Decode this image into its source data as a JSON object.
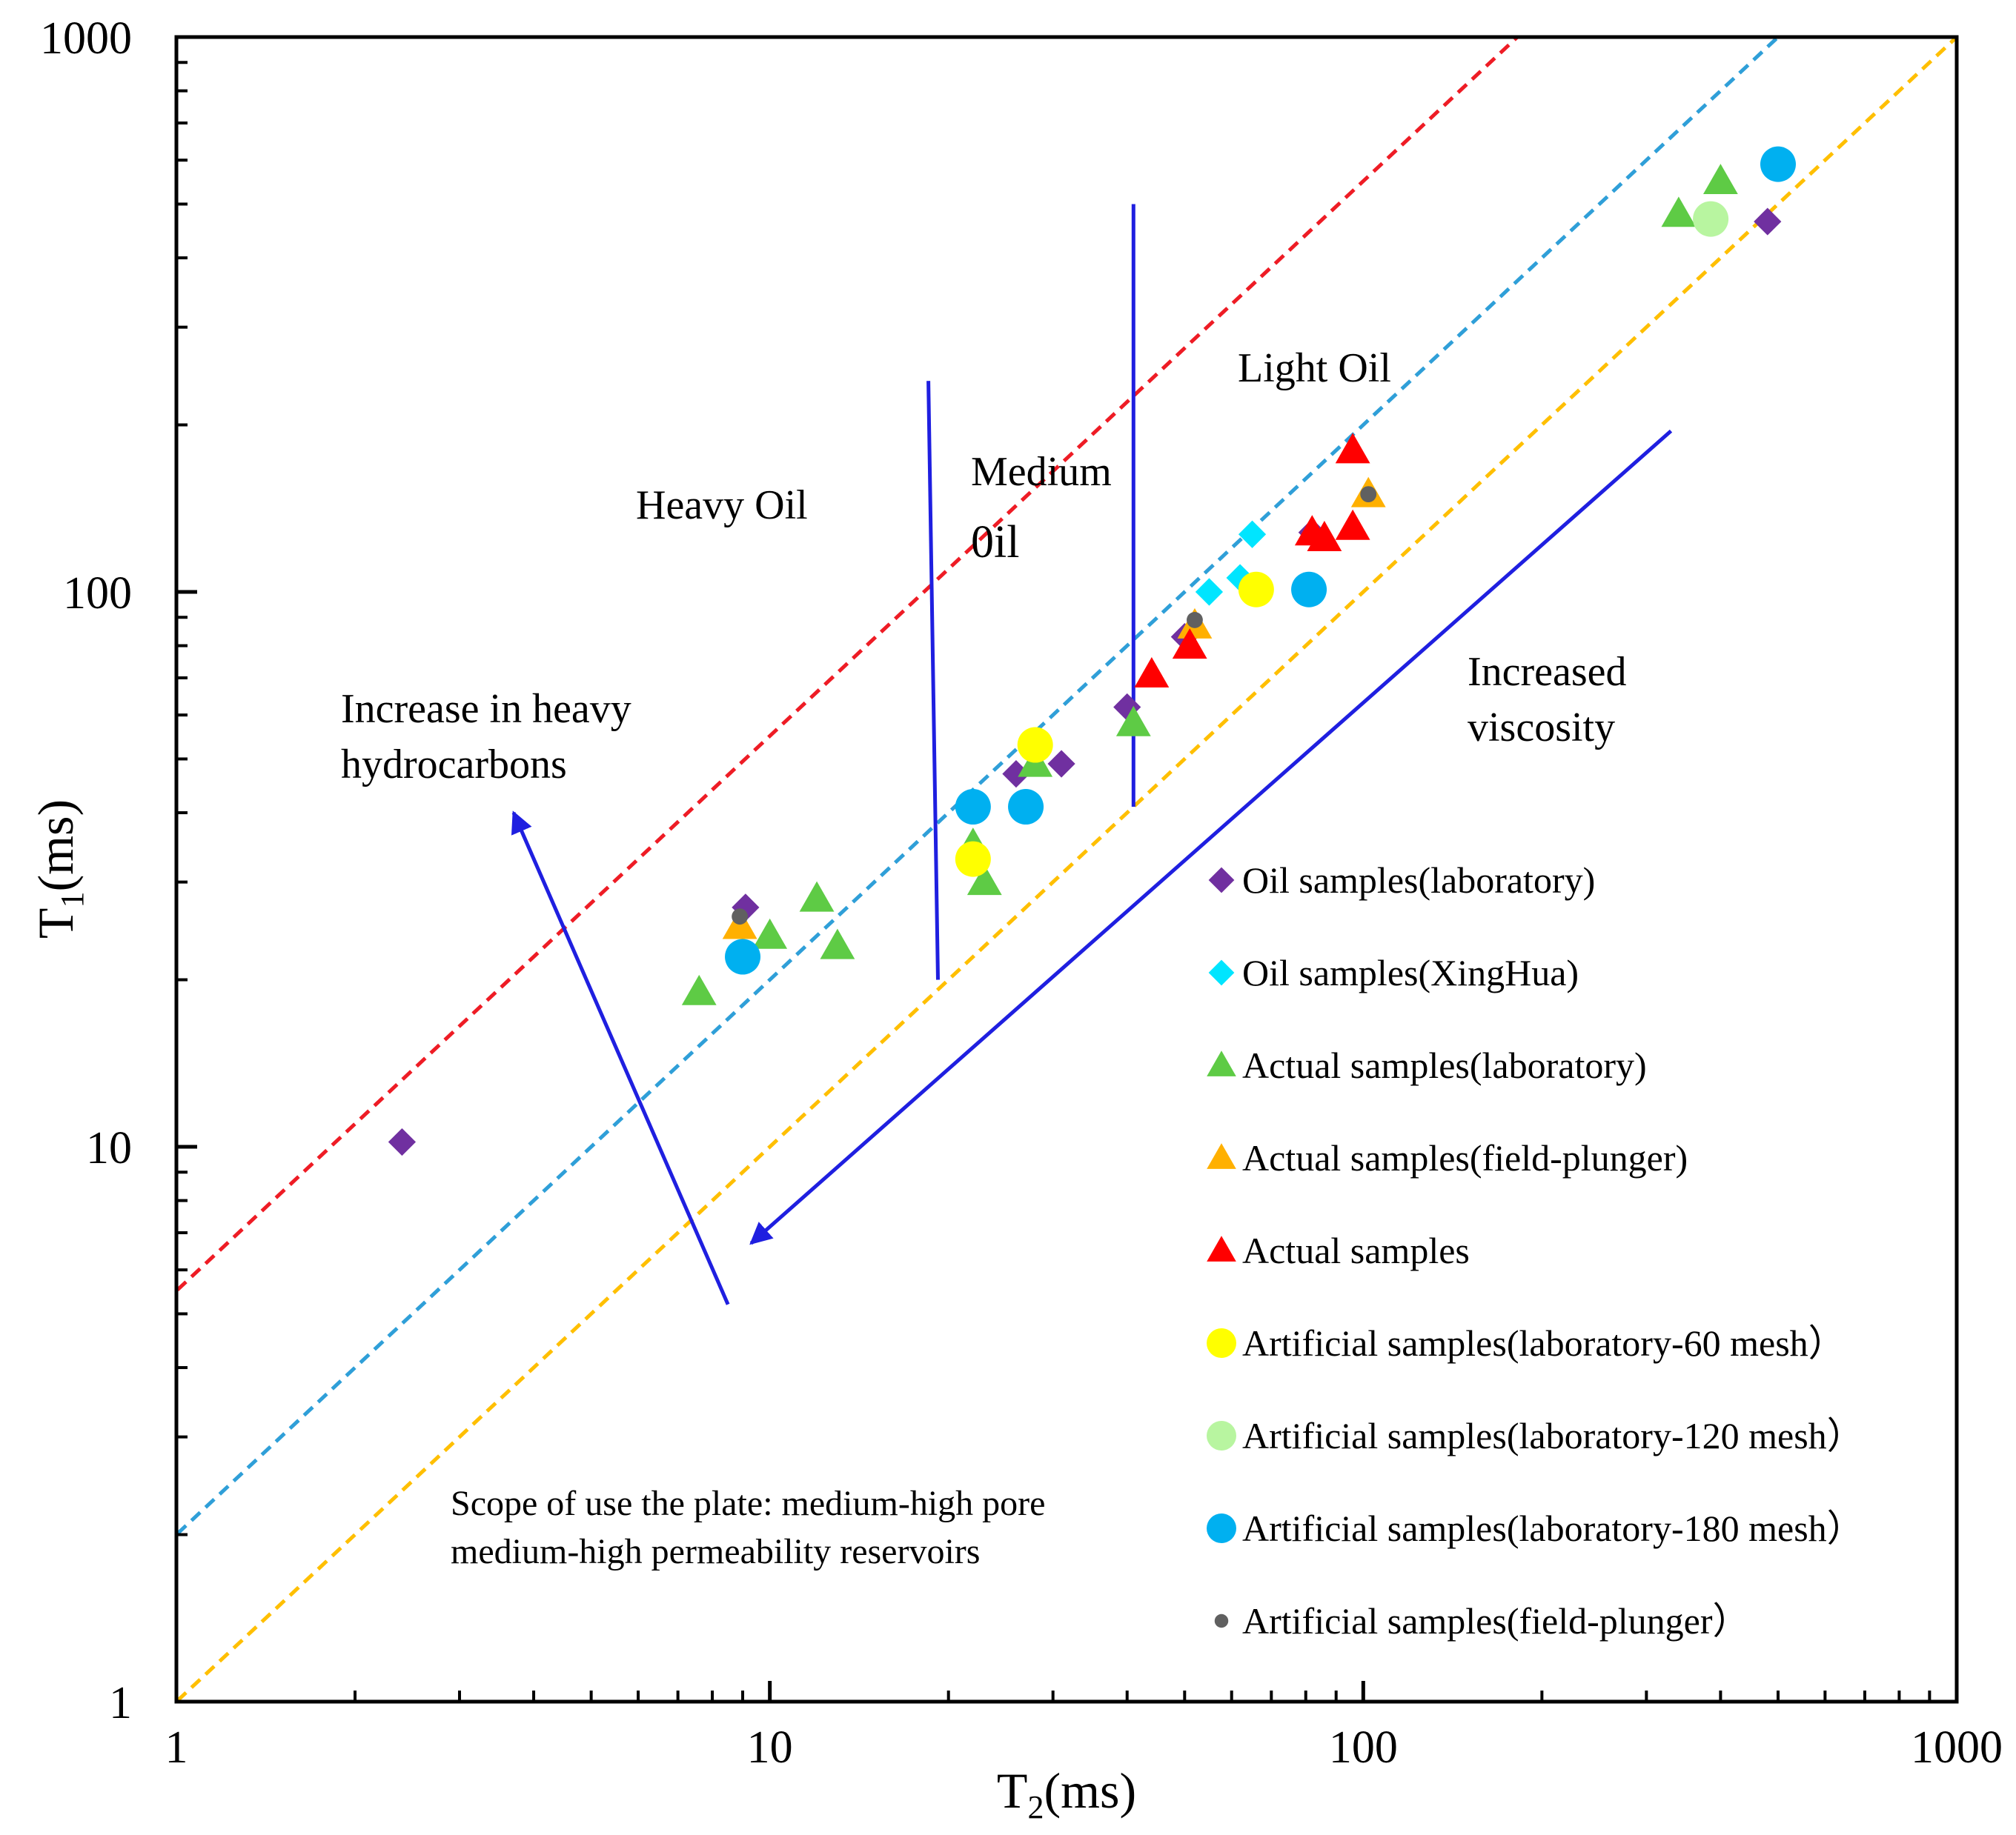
{
  "chart_data": {
    "type": "scatter",
    "x_scale": "log",
    "y_scale": "log",
    "xlim": [
      1,
      1000
    ],
    "ylim": [
      1,
      1000
    ],
    "xlabel": "T2(ms)",
    "ylabel": "T1(ms)",
    "xlabel_main": "T",
    "xlabel_sub": "2",
    "xlabel_unit": "(ms)",
    "ylabel_main": "T",
    "ylabel_sub": "1",
    "ylabel_unit": "(ms)",
    "x_ticks": [
      1,
      10,
      100,
      1000
    ],
    "x_tick_labels": [
      "1",
      "10",
      "100",
      "1000"
    ],
    "y_ticks": [
      1,
      10,
      100,
      1000
    ],
    "y_tick_labels": [
      "1",
      "10",
      "100",
      "1000"
    ],
    "reference_lines": [
      {
        "name": "T1/T2 = 5.5",
        "ratio": 5.5,
        "color": "#ee1c25"
      },
      {
        "name": "T1/T2 = 2",
        "ratio": 2,
        "color": "#2f9fd8"
      },
      {
        "name": "T1/T2 = 1",
        "ratio": 1,
        "color": "#ffbf00"
      }
    ],
    "region_boundaries": [
      {
        "name": "heavy-medium boundary",
        "x_start": 18.5,
        "y_start": 240,
        "x_end": 19.2,
        "y_end": 20,
        "color": "#1f1fe0"
      },
      {
        "name": "medium-light boundary",
        "x_start": 41,
        "y_start": 500,
        "x_end": 41,
        "y_end": 41,
        "color": "#1f1fe0"
      }
    ],
    "arrows": [
      {
        "name": "heavy hydrocarbons arrow",
        "from": [
          8.5,
          5.2
        ],
        "to": [
          3.7,
          40
        ],
        "color": "#1f1fe0"
      },
      {
        "name": "viscosity arrow",
        "from": [
          330,
          195
        ],
        "to": [
          9.3,
          6.7
        ],
        "color": "#1f1fe0"
      }
    ],
    "annotations": {
      "heavy_oil": "Heavy Oil",
      "medium_oil_line1": "Medium",
      "medium_oil_line2": "0il",
      "light_oil": "Light Oil",
      "heavy_hydrocarbons_line1": "Increase in heavy",
      "heavy_hydrocarbons_line2": "hydrocarbons",
      "viscosity_line1": "Increased",
      "viscosity_line2": "viscosity",
      "scope_line1": "Scope of use the plate: medium-high pore",
      "scope_line2": "medium-high permeability reservoirs"
    },
    "legend_position": "bottom-right",
    "series": [
      {
        "name": "Oil samples(laboratory)",
        "marker": "diamond",
        "color": "#7030a0",
        "points": [
          [
            2.4,
            10.2
          ],
          [
            9.1,
            27
          ],
          [
            26,
            47
          ],
          [
            31,
            49
          ],
          [
            40,
            62
          ],
          [
            50,
            83
          ],
          [
            82,
            128
          ],
          [
            480,
            465
          ]
        ]
      },
      {
        "name": "Oil samples(XingHua)",
        "marker": "diamond",
        "color": "#00e5ff",
        "points": [
          [
            55,
            100
          ],
          [
            62,
            106
          ],
          [
            65,
            127
          ]
        ]
      },
      {
        "name": "Actual samples(laboratory)",
        "marker": "triangle",
        "color": "#5ecb45",
        "points": [
          [
            7.6,
            19
          ],
          [
            10,
            24
          ],
          [
            12,
            28
          ],
          [
            13,
            23
          ],
          [
            22,
            35
          ],
          [
            23,
            30
          ],
          [
            28,
            49
          ],
          [
            41,
            58
          ],
          [
            340,
            480
          ],
          [
            400,
            550
          ]
        ]
      },
      {
        "name": "Actual samples(field-plunger)",
        "marker": "triangle",
        "color": "#ffb000",
        "points": [
          [
            8.9,
            25
          ],
          [
            52,
            87
          ],
          [
            102,
            150
          ]
        ]
      },
      {
        "name": "Actual samples",
        "marker": "triangle",
        "color": "#ff0000",
        "points": [
          [
            44,
            71
          ],
          [
            51,
            80
          ],
          [
            82,
            128
          ],
          [
            86,
            125
          ],
          [
            96,
            131
          ],
          [
            96,
            180
          ]
        ]
      },
      {
        "name": "Artificial  samples(laboratory-60 mesh）",
        "marker": "circle",
        "color": "#ffff00",
        "points": [
          [
            22,
            33
          ],
          [
            28,
            53
          ],
          [
            66,
            101
          ]
        ]
      },
      {
        "name": "Artificial  samples(laboratory-120 mesh）",
        "marker": "circle",
        "color": "#b8f5a0",
        "points": [
          [
            385,
            470
          ]
        ]
      },
      {
        "name": "Artificial  samples(laboratory-180 mesh）",
        "marker": "circle",
        "color": "#00b0f0",
        "points": [
          [
            9,
            22
          ],
          [
            22,
            41
          ],
          [
            27,
            41
          ],
          [
            81,
            101
          ],
          [
            500,
            590
          ]
        ]
      },
      {
        "name": "Artificial  samples(field-plunger）",
        "marker": "dot",
        "color": "#606060",
        "points": [
          [
            8.9,
            26
          ],
          [
            52,
            89
          ],
          [
            102,
            150
          ]
        ]
      }
    ]
  }
}
